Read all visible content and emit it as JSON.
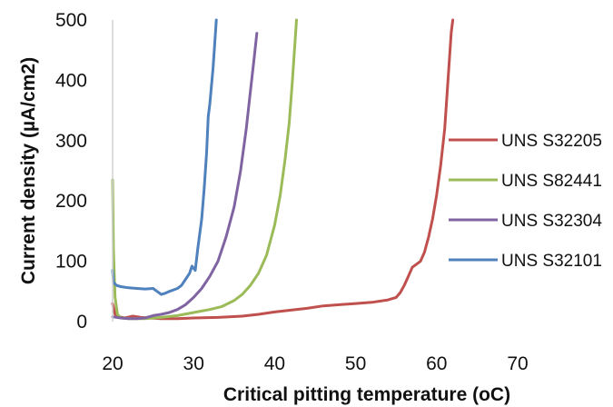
{
  "chart_data": {
    "type": "line",
    "title": "",
    "xlabel": "Critical  pitting temperature (oC)",
    "ylabel": "Current density (µA/cm2)",
    "xlim": [
      20,
      70
    ],
    "ylim": [
      0,
      500
    ],
    "xticks": [
      20,
      30,
      40,
      50,
      60,
      70
    ],
    "yticks": [
      0,
      100,
      200,
      300,
      400,
      500
    ],
    "grid": false,
    "legend_position": "right",
    "series": [
      {
        "name": "UNS S32205",
        "color": "#c0504d",
        "points": [
          [
            20,
            30
          ],
          [
            20.3,
            12
          ],
          [
            20.8,
            8
          ],
          [
            21.5,
            6
          ],
          [
            22.5,
            9
          ],
          [
            23.5,
            7
          ],
          [
            24.5,
            6
          ],
          [
            26,
            5
          ],
          [
            28,
            5
          ],
          [
            30,
            6
          ],
          [
            33,
            7
          ],
          [
            36,
            9
          ],
          [
            38,
            12
          ],
          [
            40,
            16
          ],
          [
            42,
            19
          ],
          [
            44,
            22
          ],
          [
            46,
            26
          ],
          [
            48,
            28
          ],
          [
            50,
            30
          ],
          [
            52,
            32
          ],
          [
            54,
            36
          ],
          [
            55,
            40
          ],
          [
            55.5,
            48
          ],
          [
            56,
            60
          ],
          [
            56.5,
            75
          ],
          [
            57,
            90
          ],
          [
            57.5,
            95
          ],
          [
            58,
            100
          ],
          [
            58.5,
            115
          ],
          [
            59,
            140
          ],
          [
            59.5,
            170
          ],
          [
            60,
            210
          ],
          [
            60.5,
            260
          ],
          [
            61,
            320
          ],
          [
            61.3,
            380
          ],
          [
            61.6,
            440
          ],
          [
            61.8,
            480
          ],
          [
            62,
            500
          ]
        ]
      },
      {
        "name": "UNS S82441",
        "color": "#9bbb59",
        "points": [
          [
            20,
            235
          ],
          [
            20.1,
            120
          ],
          [
            20.3,
            40
          ],
          [
            20.6,
            12
          ],
          [
            21,
            6
          ],
          [
            22,
            5
          ],
          [
            24,
            5
          ],
          [
            26,
            7
          ],
          [
            28,
            10
          ],
          [
            30,
            15
          ],
          [
            32,
            20
          ],
          [
            33.5,
            25
          ],
          [
            35,
            35
          ],
          [
            36,
            45
          ],
          [
            37,
            60
          ],
          [
            38,
            80
          ],
          [
            39,
            110
          ],
          [
            40,
            160
          ],
          [
            40.7,
            210
          ],
          [
            41.3,
            270
          ],
          [
            41.8,
            330
          ],
          [
            42.2,
            400
          ],
          [
            42.5,
            460
          ],
          [
            42.7,
            500
          ]
        ]
      },
      {
        "name": "UNS S32304",
        "color": "#8064a2",
        "points": [
          [
            20,
            8
          ],
          [
            21,
            6
          ],
          [
            22,
            5
          ],
          [
            23,
            5
          ],
          [
            24,
            6
          ],
          [
            25,
            10
          ],
          [
            26,
            12
          ],
          [
            27,
            15
          ],
          [
            28,
            20
          ],
          [
            29,
            28
          ],
          [
            30,
            40
          ],
          [
            31,
            55
          ],
          [
            32,
            75
          ],
          [
            33,
            100
          ],
          [
            34,
            140
          ],
          [
            35,
            190
          ],
          [
            35.8,
            250
          ],
          [
            36.5,
            320
          ],
          [
            37,
            380
          ],
          [
            37.5,
            440
          ],
          [
            37.8,
            478
          ]
        ]
      },
      {
        "name": "UNS S32101",
        "color": "#4f81bd",
        "points": [
          [
            20,
            85
          ],
          [
            20.1,
            65
          ],
          [
            20.5,
            60
          ],
          [
            21,
            58
          ],
          [
            22,
            56
          ],
          [
            23,
            55
          ],
          [
            24,
            54
          ],
          [
            25,
            55
          ],
          [
            25.5,
            50
          ],
          [
            26,
            45
          ],
          [
            26.5,
            47
          ],
          [
            27,
            50
          ],
          [
            28,
            55
          ],
          [
            28.5,
            60
          ],
          [
            29,
            70
          ],
          [
            29.5,
            80
          ],
          [
            29.8,
            92
          ],
          [
            30.2,
            85
          ],
          [
            30.5,
            120
          ],
          [
            31,
            170
          ],
          [
            31.3,
            220
          ],
          [
            31.6,
            280
          ],
          [
            31.8,
            340
          ],
          [
            32,
            360
          ],
          [
            32.2,
            390
          ],
          [
            32.4,
            420
          ],
          [
            32.6,
            460
          ],
          [
            32.8,
            500
          ]
        ]
      }
    ]
  }
}
